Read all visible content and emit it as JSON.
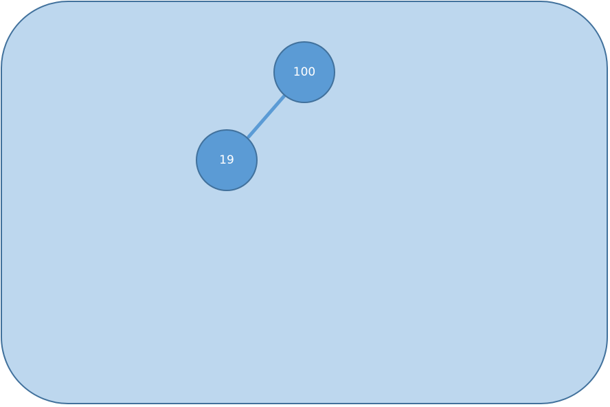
{
  "diagram": {
    "type": "binary-tree",
    "colors": {
      "panel_fill": "#bdd7ee",
      "panel_border": "#41719c",
      "node_fill": "#5b9bd5",
      "node_border": "#41719c",
      "edge": "#5b9bd5",
      "label": "#ffffff"
    },
    "nodes": [
      {
        "id": "root",
        "label": "100"
      },
      {
        "id": "left-child",
        "label": "19"
      }
    ],
    "edges": [
      {
        "from": "root",
        "to": "left-child"
      }
    ]
  }
}
